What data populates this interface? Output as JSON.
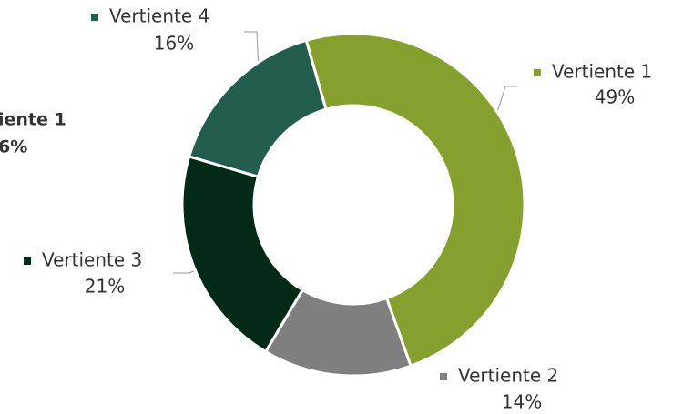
{
  "chart_data": {
    "type": "donut",
    "categories": [
      "Vertiente 1",
      "Vertiente 2",
      "Vertiente 3",
      "Vertiente 4"
    ],
    "values": [
      49,
      14,
      21,
      16
    ],
    "value_labels": [
      "49%",
      "14%",
      "21%",
      "16%"
    ],
    "colors": [
      "#86a030",
      "#7f7f7f",
      "#032a17",
      "#235d4e"
    ],
    "annotations": [
      "iente 1",
      "6%"
    ]
  }
}
